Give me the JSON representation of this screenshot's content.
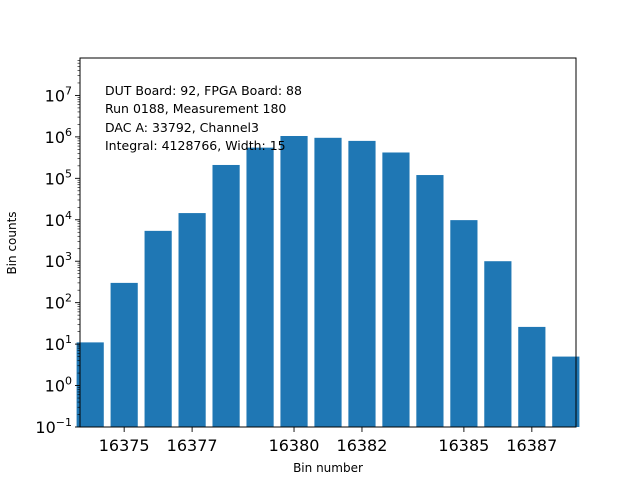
{
  "chart_data": {
    "type": "bar",
    "title": "",
    "xlabel": "Bin number",
    "ylabel": "Bin counts",
    "y_scale": "log",
    "ylim": [
      0.1,
      80000000
    ],
    "xlim": [
      16373.7,
      16388.3
    ],
    "grid": false,
    "bar_color": "#1f77b4",
    "x": [
      16374,
      16375,
      16376,
      16377,
      16378,
      16379,
      16380,
      16381,
      16382,
      16383,
      16384,
      16385,
      16386,
      16387,
      16388
    ],
    "values": [
      11,
      300,
      5400,
      14500,
      210000,
      550000,
      1050000,
      950000,
      800000,
      420000,
      120000,
      9800,
      1000,
      26,
      5
    ],
    "x_ticks": [
      {
        "value": 16375,
        "label": "16375"
      },
      {
        "value": 16377,
        "label": "16377"
      },
      {
        "value": 16380,
        "label": "16380"
      },
      {
        "value": 16382,
        "label": "16382"
      },
      {
        "value": 16385,
        "label": "16385"
      },
      {
        "value": 16387,
        "label": "16387"
      }
    ],
    "y_ticks": [
      {
        "exp": -1,
        "base": "10",
        "sup": "−1"
      },
      {
        "exp": 0,
        "base": "10",
        "sup": "0"
      },
      {
        "exp": 1,
        "base": "10",
        "sup": "1"
      },
      {
        "exp": 2,
        "base": "10",
        "sup": "2"
      },
      {
        "exp": 3,
        "base": "10",
        "sup": "3"
      },
      {
        "exp": 4,
        "base": "10",
        "sup": "4"
      },
      {
        "exp": 5,
        "base": "10",
        "sup": "5"
      },
      {
        "exp": 6,
        "base": "10",
        "sup": "6"
      },
      {
        "exp": 7,
        "base": "10",
        "sup": "7"
      }
    ],
    "annotation": [
      "DUT Board: 92, FPGA Board: 88",
      "Run 0188, Measurement 180",
      "DAC A: 33792, Channel3",
      "Integral: 4128766, Width: 15"
    ]
  }
}
